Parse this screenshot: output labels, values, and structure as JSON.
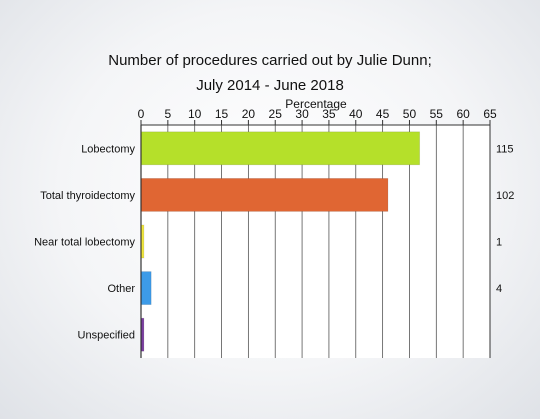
{
  "chart_data": {
    "type": "bar",
    "orientation": "horizontal",
    "title_line1": "Number of procedures carried out by Julie Dunn;",
    "title_line2": "July 2014 - June 2018",
    "xlabel": "Percentage",
    "xlim": [
      0,
      65
    ],
    "xticks": [
      0,
      5,
      10,
      15,
      20,
      25,
      30,
      35,
      40,
      45,
      50,
      55,
      60,
      65
    ],
    "grid": "vertical",
    "categories": [
      "Lobectomy",
      "Total thyroidectomy",
      "Near total lobectomy",
      "Other",
      "Unspecified"
    ],
    "values": [
      51.8,
      45.9,
      0.45,
      1.8,
      0.45
    ],
    "counts": [
      "115",
      "102",
      "1",
      "4",
      ""
    ],
    "colors": [
      "#b5e02a",
      "#e06633",
      "#f0e63a",
      "#3d9be8",
      "#7a3da0"
    ]
  }
}
